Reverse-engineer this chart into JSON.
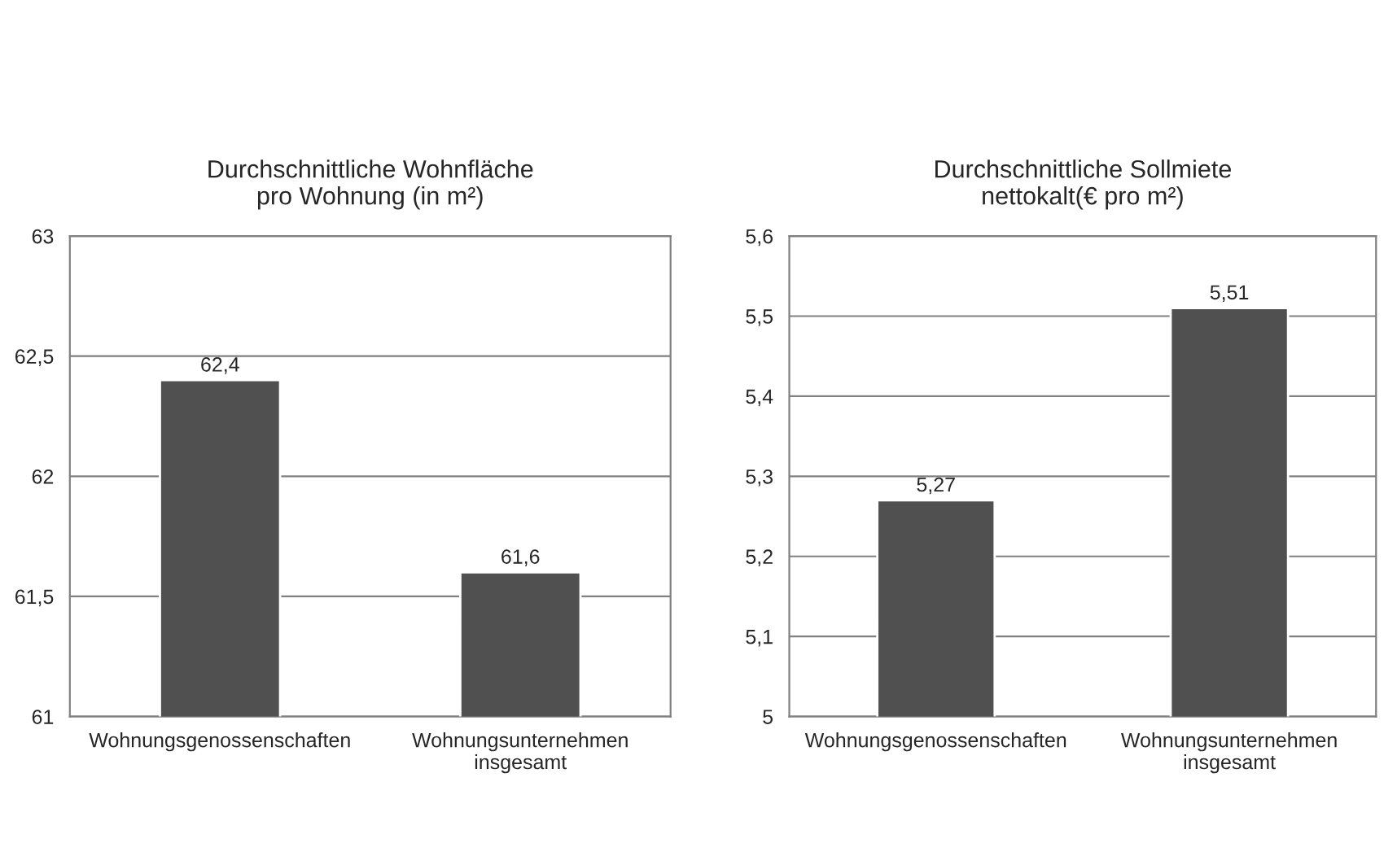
{
  "chart_data": [
    {
      "type": "bar",
      "title": "Durchschnittliche Wohnfläche\npro Wohnung (in m²)",
      "categories": [
        "Wohnungsgenossenschaften",
        "Wohnungsunternehmen\ninsgesamt"
      ],
      "values": [
        62.4,
        61.6
      ],
      "value_labels": [
        "62,4",
        "61,6"
      ],
      "color": "#505050",
      "ylim": [
        61,
        63
      ],
      "yticks": [
        61,
        {
          "value": 61.5,
          "label": "61,5"
        },
        62,
        {
          "value": 62.5,
          "label": "62,5"
        },
        63
      ],
      "grid": "y",
      "legend": false
    },
    {
      "type": "bar",
      "title": "Durchschnittliche Sollmiete\nnettokalt(€ pro m²)",
      "categories": [
        "Wohnungsgenossenschaften",
        "Wohnungsunternehmen\ninsgesamt"
      ],
      "values": [
        5.27,
        5.51
      ],
      "value_labels": [
        "5,27",
        "5,51"
      ],
      "color": "#505050",
      "ylim": [
        5,
        5.6
      ],
      "yticks": [
        5,
        {
          "value": 5.1,
          "label": "5,1"
        },
        {
          "value": 5.2,
          "label": "5,2"
        },
        {
          "value": 5.3,
          "label": "5,3"
        },
        {
          "value": 5.4,
          "label": "5,4"
        },
        {
          "value": 5.5,
          "label": "5,5"
        },
        {
          "value": 5.6,
          "label": "5,6"
        }
      ],
      "grid": "y",
      "legend": false
    }
  ]
}
